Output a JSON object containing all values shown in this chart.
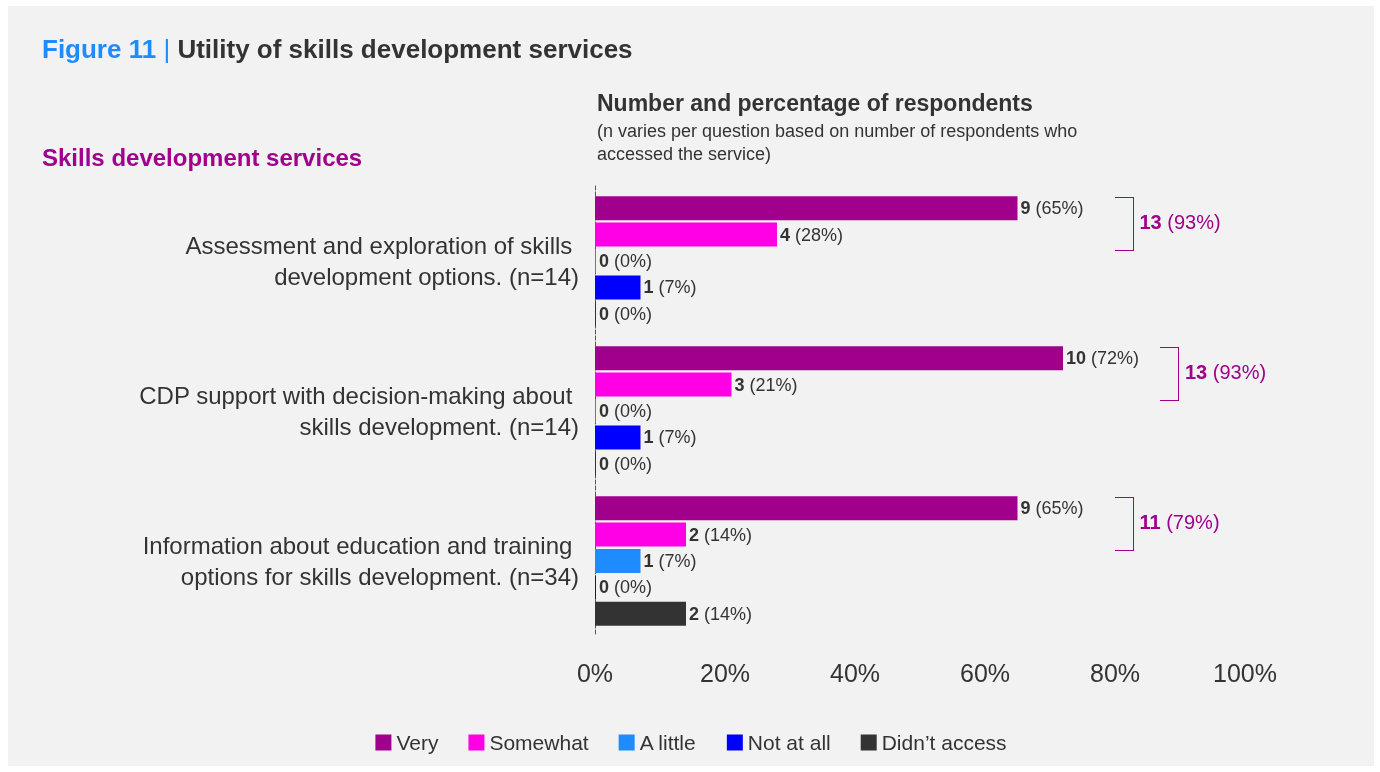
{
  "chart_data": {
    "type": "bar",
    "orientation": "horizontal",
    "title": "Figure 11 | Utility of skills development services",
    "subtitle": "Number and percentage of respondents",
    "ylabel": "Skills development services",
    "annotations": [
      "(n varies per question based on number of respondents who accessed the service)",
      "13 (93%)",
      "13 (93%)",
      "11 (79%)"
    ],
    "categories": [
      "Assessment and exploration of skills development options. (n=14)",
      "CDP support with decision-making about skills development. (n=14)",
      "Information about education and training options for skills development. (n=34)"
    ],
    "series": [
      {
        "name": "Very",
        "color": "#a0008c",
        "values": [
          65,
          72,
          65
        ],
        "value_labels": [
          "9 (65%)",
          "10 (72%)",
          "9 (65%)"
        ]
      },
      {
        "name": "Somewhat",
        "color": "#ff00e6",
        "values": [
          28,
          21,
          14
        ],
        "value_labels": [
          "4 (28%)",
          "3 (21%)",
          "2 (14%)"
        ]
      },
      {
        "name": "A little",
        "color": "#1e8cff",
        "values": [
          0,
          0,
          7
        ],
        "value_labels": [
          "0 (0%)",
          "0 (0%)",
          "1 (7%)"
        ]
      },
      {
        "name": "Not at all",
        "color": "#0000ff",
        "values": [
          7,
          7,
          0
        ],
        "value_labels": [
          "1 (7%)",
          "1 (7%)",
          "0 (0%)"
        ]
      },
      {
        "name": "Didn’t access",
        "color": "#333333",
        "values": [
          0,
          0,
          14
        ],
        "value_labels": [
          "0 (0%)",
          "0 (0%)",
          "2 (14%)"
        ]
      }
    ],
    "xlim": [
      0,
      100
    ],
    "xticks": [
      {
        "value": 0,
        "label": "0%"
      },
      {
        "value": 20,
        "label": "20%"
      },
      {
        "value": 40,
        "label": "40%"
      },
      {
        "value": 60,
        "label": "60%"
      },
      {
        "value": 80,
        "label": "80%"
      },
      {
        "value": 100,
        "label": "100%"
      }
    ],
    "grid": false,
    "legend": "bottom"
  }
}
